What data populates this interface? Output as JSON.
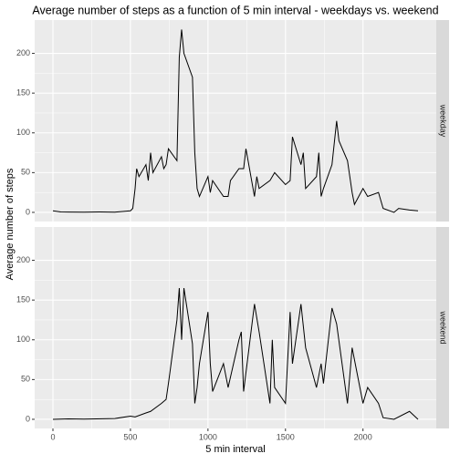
{
  "chart_data": {
    "type": "line",
    "title": "Average number of steps as a function of 5 min interval -  weekdays vs. weekend",
    "x_label": "5 min interval",
    "y_label": "Average number of steps",
    "xlim": [
      -117.75,
      2472.75
    ],
    "xticks": [
      0,
      500,
      1000,
      1500,
      2000
    ],
    "ylim": [
      -11.5,
      241.9
    ],
    "yticks": [
      0,
      50,
      100,
      150,
      200
    ],
    "grid": true,
    "series": [
      {
        "name": "weekday",
        "color": "#000000",
        "x": [
          0,
          50,
          100,
          200,
          300,
          400,
          500,
          515,
          530,
          540,
          555,
          600,
          615,
          630,
          645,
          700,
          715,
          730,
          745,
          800,
          815,
          830,
          845,
          900,
          915,
          930,
          945,
          1000,
          1015,
          1030,
          1100,
          1130,
          1145,
          1200,
          1230,
          1245,
          1300,
          1315,
          1330,
          1400,
          1430,
          1500,
          1530,
          1545,
          1600,
          1615,
          1630,
          1700,
          1715,
          1730,
          1745,
          1800,
          1830,
          1845,
          1900,
          1930,
          1945,
          2000,
          2030,
          2100,
          2130,
          2200,
          2230,
          2300,
          2355
        ],
        "values": [
          2,
          0.5,
          0.4,
          0.3,
          0.5,
          0.3,
          2,
          5,
          30,
          55,
          45,
          60,
          40,
          75,
          50,
          70,
          55,
          60,
          80,
          65,
          195,
          230,
          200,
          170,
          75,
          30,
          20,
          45,
          25,
          40,
          20,
          20,
          40,
          55,
          55,
          80,
          20,
          45,
          30,
          40,
          50,
          35,
          40,
          95,
          60,
          75,
          30,
          45,
          75,
          20,
          30,
          60,
          115,
          90,
          65,
          25,
          10,
          30,
          20,
          25,
          5,
          0,
          5,
          3,
          2
        ]
      },
      {
        "name": "weekend",
        "color": "#000000",
        "x": [
          0,
          100,
          200,
          400,
          500,
          530,
          600,
          630,
          700,
          730,
          745,
          800,
          815,
          830,
          845,
          900,
          915,
          930,
          945,
          1000,
          1015,
          1030,
          1100,
          1130,
          1200,
          1215,
          1230,
          1300,
          1330,
          1400,
          1415,
          1430,
          1500,
          1530,
          1545,
          1600,
          1630,
          1700,
          1730,
          1745,
          1800,
          1830,
          1900,
          1930,
          2000,
          2030,
          2100,
          2130,
          2200,
          2300,
          2355
        ],
        "values": [
          0,
          0.5,
          0.2,
          1,
          4,
          3,
          8,
          10,
          20,
          25,
          45,
          125,
          165,
          100,
          165,
          95,
          20,
          40,
          70,
          135,
          70,
          35,
          70,
          40,
          100,
          110,
          35,
          145,
          110,
          20,
          100,
          40,
          20,
          135,
          70,
          145,
          90,
          40,
          70,
          45,
          140,
          120,
          20,
          90,
          20,
          40,
          20,
          2,
          0,
          10,
          0
        ]
      }
    ]
  }
}
